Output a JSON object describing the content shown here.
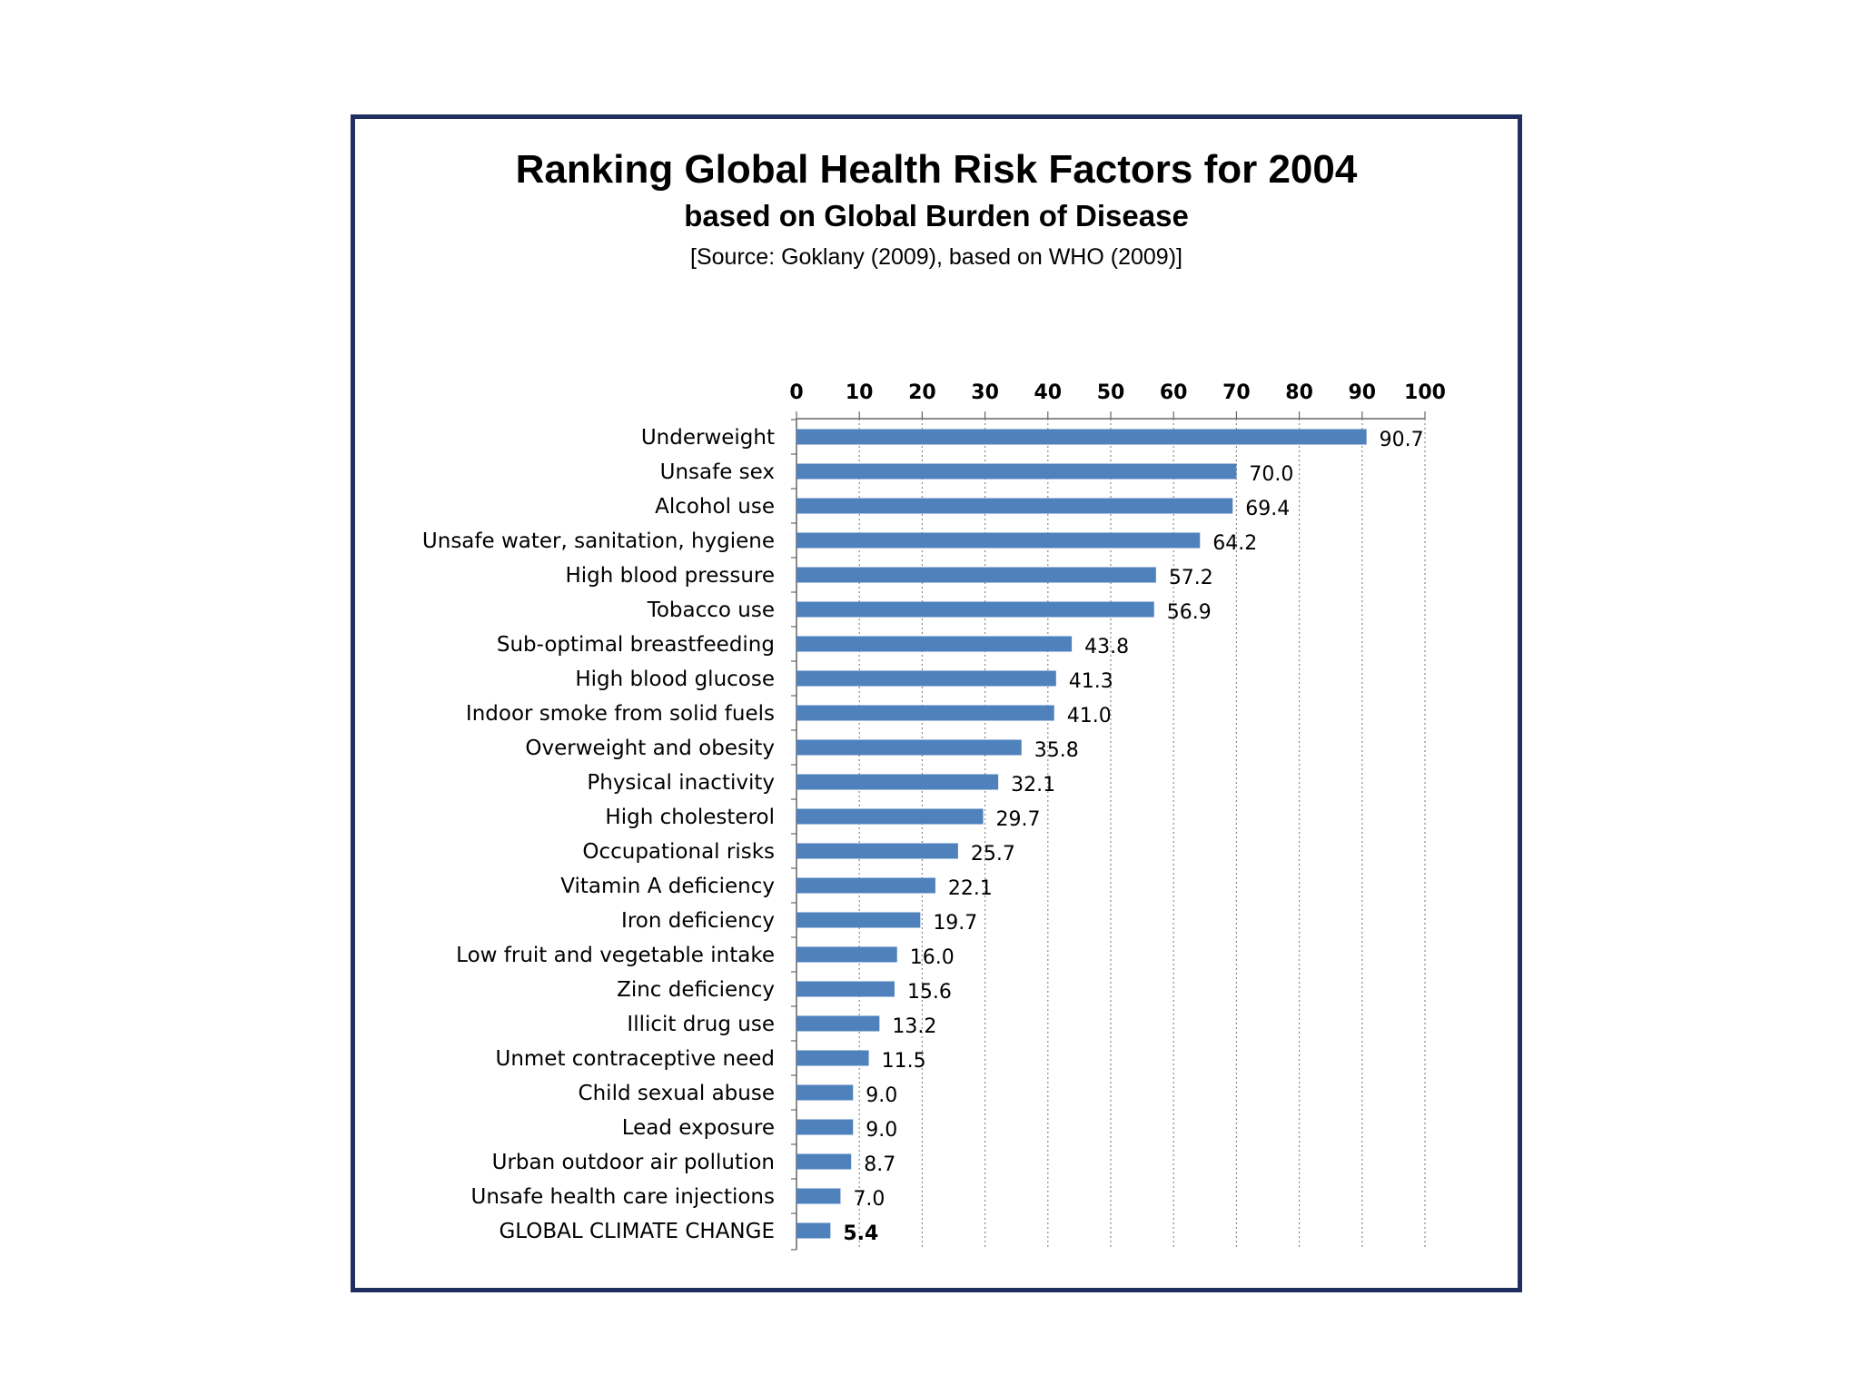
{
  "chart_data": {
    "type": "bar",
    "orientation": "horizontal",
    "title": "Ranking Global Health Risk Factors for 2004",
    "subtitle": "based on Global Burden of Disease",
    "source": "[Source: Goklany (2009), based on WHO (2009)]",
    "categories": [
      "Underweight",
      "Unsafe sex",
      "Alcohol use",
      "Unsafe water, sanitation, hygiene",
      "High blood pressure",
      "Tobacco use",
      "Sub-optimal breastfeeding",
      "High blood glucose",
      "Indoor smoke from solid fuels",
      "Overweight and obesity",
      "Physical inactivity",
      "High cholesterol",
      "Occupational risks",
      "Vitamin A deficiency",
      "Iron deficiency",
      "Low fruit and vegetable intake",
      "Zinc deficiency",
      "Illicit drug use",
      "Unmet contraceptive need",
      "Child sexual abuse",
      "Lead exposure",
      "Urban outdoor air pollution",
      "Unsafe health care injections",
      "GLOBAL CLIMATE CHANGE"
    ],
    "values": [
      90.7,
      70.0,
      69.4,
      64.2,
      57.2,
      56.9,
      43.8,
      41.3,
      41.0,
      35.8,
      32.1,
      29.7,
      25.7,
      22.1,
      19.7,
      16.0,
      15.6,
      13.2,
      11.5,
      9.0,
      9.0,
      8.7,
      7.0,
      5.4
    ],
    "value_labels": [
      "90.7",
      "70.0",
      "69.4",
      "64.2",
      "57.2",
      "56.9",
      "43.8",
      "41.3",
      "41.0",
      "35.8",
      "32.1",
      "29.7",
      "25.7",
      "22.1",
      "19.7",
      "16.0",
      "15.6",
      "13.2",
      "11.5",
      "9.0",
      "9.0",
      "8.7",
      "7.0",
      "5.4"
    ],
    "xlim": [
      0,
      100
    ],
    "xticks": [
      "0",
      "10",
      "20",
      "30",
      "40",
      "50",
      "60",
      "70",
      "80",
      "90",
      "100"
    ],
    "x_axis_position": "top",
    "grid": "vertical dotted",
    "bar_color": "#4f81bd",
    "highlight_color": "#ff0000",
    "highlight_index": 23
  }
}
